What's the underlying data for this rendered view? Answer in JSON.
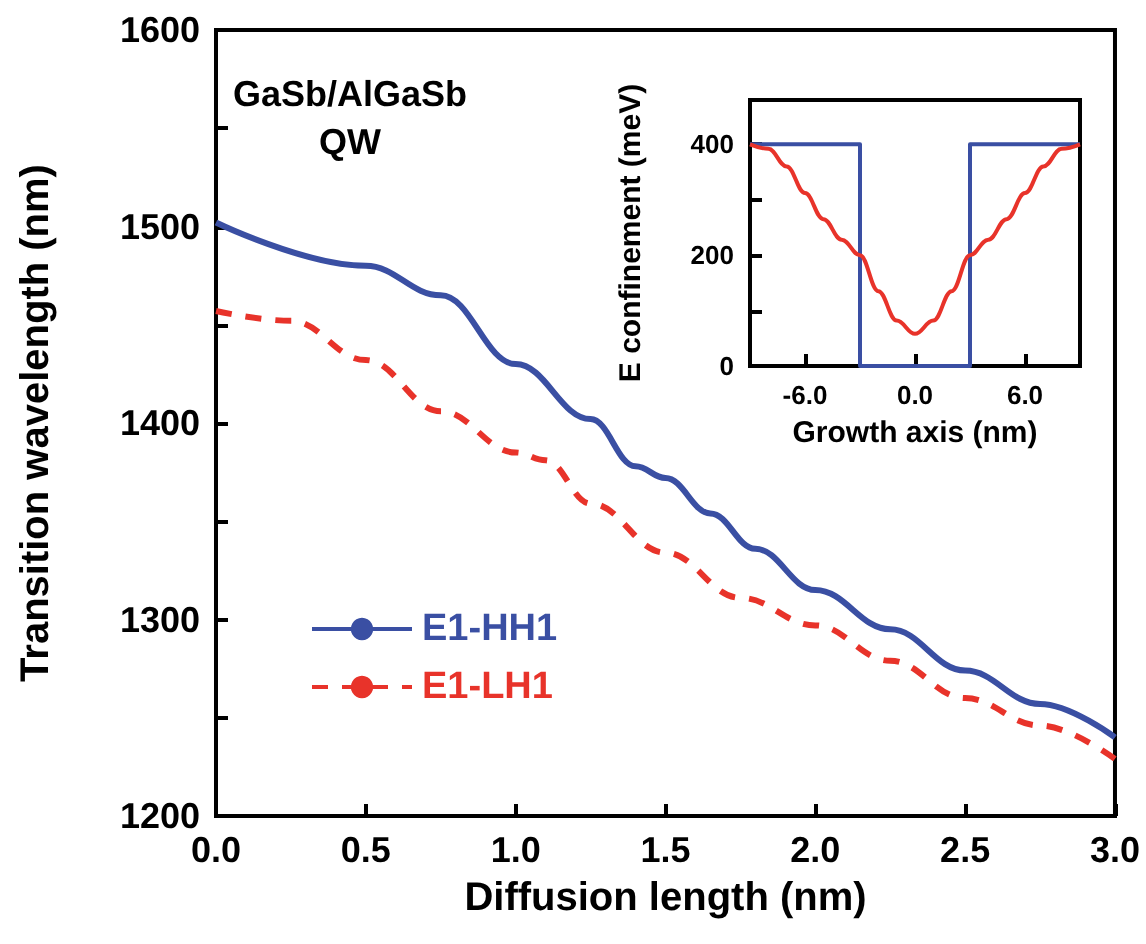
{
  "chart_data": [
    {
      "type": "line",
      "xlabel": "Diffusion length (nm)",
      "ylabel": "Transition wavelength (nm)",
      "annotations": [
        "GaSb/AlGaSb\nQW"
      ],
      "xlim": [
        0,
        3
      ],
      "xticks": [
        {
          "value": 0,
          "label": "0.0"
        },
        {
          "value": 0.5,
          "label": "0.5"
        },
        {
          "value": 1,
          "label": "1.0"
        },
        {
          "value": 1.5,
          "label": "1.5"
        },
        {
          "value": 2,
          "label": "2.0"
        },
        {
          "value": 2.5,
          "label": "2.5"
        },
        {
          "value": 3,
          "label": "3.0"
        }
      ],
      "ylim": [
        1200,
        1600
      ],
      "yticks": [
        1200,
        {
          "value": 1250,
          "label": null
        },
        1300,
        {
          "value": 1350,
          "label": null
        },
        1400,
        {
          "value": 1450,
          "label": null
        },
        1500,
        {
          "value": 1550,
          "label": null
        },
        1600
      ],
      "grid": false,
      "legend": "left",
      "marker": "none",
      "series": [
        {
          "name": "E1-HH1",
          "color": "#3a4fa3",
          "line_style": "solid",
          "x": [
            0,
            0.5,
            0.75,
            1,
            1.25,
            1.4,
            1.5,
            1.65,
            1.8,
            2,
            2.25,
            2.5,
            2.75,
            3
          ],
          "values": [
            1502,
            1480,
            1465,
            1430,
            1402,
            1378,
            1372,
            1354,
            1336,
            1315,
            1295,
            1274,
            1257,
            1240
          ]
        },
        {
          "name": "E1-LH1",
          "color": "#e8332a",
          "line_style": "dashed",
          "x": [
            0,
            0.25,
            0.5,
            0.75,
            1,
            1.1,
            1.25,
            1.5,
            1.75,
            2,
            2.25,
            2.5,
            2.75,
            3
          ],
          "values": [
            1457,
            1452,
            1432,
            1406,
            1385,
            1381,
            1359,
            1334,
            1311,
            1297,
            1279,
            1260,
            1246,
            1229
          ]
        }
      ]
    },
    {
      "type": "line",
      "xlabel": "Growth axis (nm)",
      "ylabel": "E confinement (meV)",
      "xlim": [
        -9,
        9
      ],
      "xticks": [
        {
          "value": -6,
          "label": "-6.0"
        },
        {
          "value": 0,
          "label": "0.0"
        },
        {
          "value": 6,
          "label": "6.0"
        }
      ],
      "ylim": [
        0,
        480
      ],
      "yticks": [
        0,
        {
          "value": 100,
          "label": null
        },
        200,
        {
          "value": 300,
          "label": null
        },
        400
      ],
      "grid": false,
      "marker": "none",
      "series": [
        {
          "color": "#3a4fa3",
          "line_style": "solid",
          "x": [
            -9,
            -3,
            -3,
            3,
            3,
            9
          ],
          "values": [
            400,
            400,
            0,
            0,
            400,
            400
          ]
        },
        {
          "color": "#e8332a",
          "line_style": "solid",
          "x": [
            -9,
            -8,
            -7,
            -6,
            -5,
            -4,
            -3,
            -2,
            -1,
            0,
            1,
            2,
            3,
            4,
            5,
            6,
            7,
            8,
            9
          ],
          "values": [
            400,
            392,
            360,
            312,
            265,
            228,
            200,
            135,
            82,
            58,
            82,
            135,
            200,
            228,
            265,
            312,
            360,
            392,
            400
          ]
        }
      ]
    }
  ]
}
